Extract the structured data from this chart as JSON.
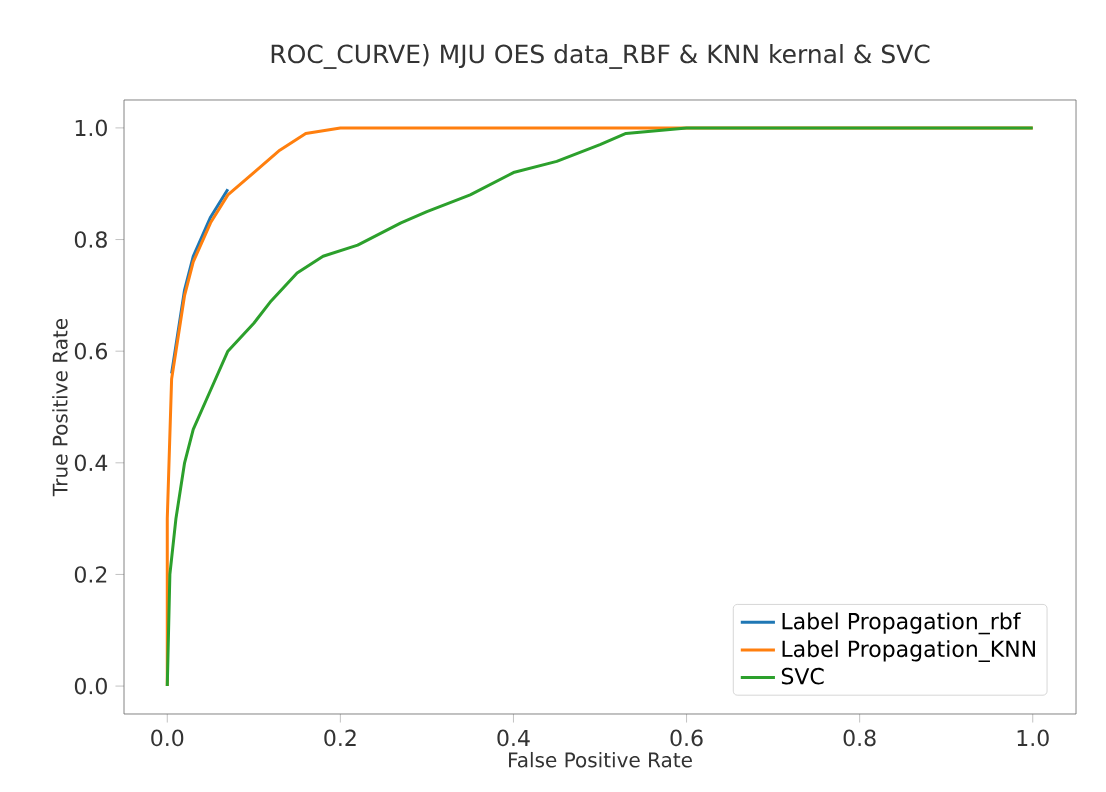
{
  "chart_data": {
    "type": "line",
    "title": "ROC_CURVE) MJU OES data_RBF & KNN kernal & SVC",
    "xlabel": "False Positive Rate",
    "ylabel": "True Positive Rate",
    "xlim": [
      -0.05,
      1.05
    ],
    "ylim": [
      -0.05,
      1.05
    ],
    "xticks": [
      {
        "value": 0,
        "label": "0.0"
      },
      0.2,
      0.4,
      0.6,
      0.8,
      {
        "value": 1,
        "label": "1.0"
      }
    ],
    "yticks": [
      {
        "value": 0,
        "label": "0.0"
      },
      0.2,
      0.4,
      0.6,
      0.8,
      {
        "value": 1,
        "label": "1.0"
      }
    ],
    "legend": "bottom right",
    "grid": false,
    "series": [
      {
        "name": "Label Propagation_rbf",
        "color": "#1f77b4",
        "x": [
          0.005,
          0.01,
          0.02,
          0.03,
          0.05,
          0.07
        ],
        "values": [
          0.56,
          0.61,
          0.71,
          0.77,
          0.84,
          0.89
        ]
      },
      {
        "name": "Label Propagation_KNN",
        "color": "#ff7f0e",
        "x": [
          0,
          0,
          0.005,
          0.01,
          0.02,
          0.03,
          0.05,
          0.07,
          0.1,
          0.13,
          0.16,
          0.2,
          0.3,
          1
        ],
        "values": [
          0,
          0.3,
          0.55,
          0.6,
          0.7,
          0.76,
          0.83,
          0.88,
          0.92,
          0.96,
          0.99,
          1,
          1,
          1
        ]
      },
      {
        "name": "SVC",
        "color": "#2ca02c",
        "x": [
          0,
          0.003,
          0.01,
          0.02,
          0.03,
          0.05,
          0.07,
          0.1,
          0.12,
          0.15,
          0.18,
          0.22,
          0.27,
          0.3,
          0.35,
          0.4,
          0.45,
          0.5,
          0.53,
          0.6,
          1
        ],
        "values": [
          0,
          0.2,
          0.3,
          0.4,
          0.46,
          0.53,
          0.6,
          0.65,
          0.69,
          0.74,
          0.77,
          0.79,
          0.83,
          0.85,
          0.88,
          0.92,
          0.94,
          0.97,
          0.99,
          1,
          1
        ]
      }
    ]
  }
}
